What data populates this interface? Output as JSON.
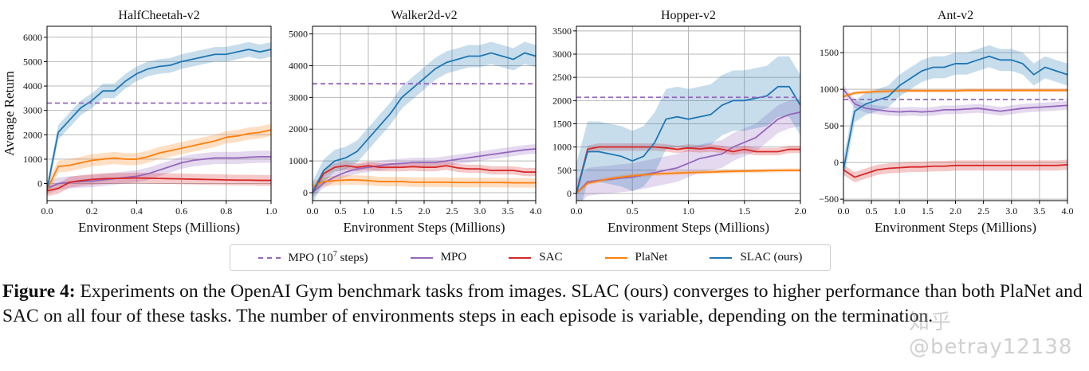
{
  "legend": [
    {
      "label": "MPO (10",
      "sup": "7",
      "suffix": " steps)",
      "color": "#9467bd",
      "dashed": true
    },
    {
      "label": "MPO",
      "color": "#9467bd"
    },
    {
      "label": "SAC",
      "color": "#d62728"
    },
    {
      "label": "PlaNet",
      "color": "#ff7f0e"
    },
    {
      "label": "SLAC (ours)",
      "color": "#1f77b4"
    }
  ],
  "caption": {
    "label": "Figure 4:",
    "text": " Experiments on the OpenAI Gym benchmark tasks from images. SLAC (ours) converges to higher performance than both PlaNet and SAC on all four of these tasks. The number of environments steps in each episode is variable, depending on the termination."
  },
  "watermark": "知乎 @betray12138",
  "chart_data": [
    {
      "type": "line",
      "title": "HalfCheetah-v2",
      "xlabel": "Environment Steps (Millions)",
      "ylabel": "Average Return",
      "xlim": [
        0,
        1.0
      ],
      "ylim": [
        -700,
        6450
      ],
      "xticks": [
        0,
        0.2,
        0.4,
        0.6,
        0.8,
        1.0
      ],
      "xtick_labels": [
        "0.0",
        "0.2",
        "0.4",
        "0.6",
        "0.8",
        "1.0"
      ],
      "yticks": [
        0,
        1000,
        2000,
        3000,
        4000,
        5000,
        6000
      ],
      "ytick_labels": [
        "0",
        "1000",
        "2000",
        "3000",
        "4000",
        "5000",
        "6000"
      ],
      "grid": true,
      "mpo_1e7": 3300,
      "x": [
        0,
        0.05,
        0.1,
        0.15,
        0.2,
        0.25,
        0.3,
        0.35,
        0.4,
        0.45,
        0.5,
        0.55,
        0.6,
        0.65,
        0.7,
        0.75,
        0.8,
        0.85,
        0.9,
        0.95,
        1.0
      ],
      "series": [
        {
          "name": "MPO",
          "band": 250,
          "values": [
            -200,
            0,
            50,
            80,
            100,
            150,
            200,
            250,
            300,
            400,
            550,
            700,
            850,
            950,
            1000,
            1050,
            1050,
            1050,
            1080,
            1100,
            1100
          ]
        },
        {
          "name": "SAC",
          "band": 220,
          "values": [
            -300,
            -200,
            50,
            120,
            170,
            200,
            210,
            220,
            230,
            220,
            210,
            200,
            190,
            180,
            170,
            160,
            150,
            140,
            140,
            130,
            130
          ]
        },
        {
          "name": "PlaNet",
          "band": 250,
          "values": [
            -250,
            700,
            750,
            850,
            950,
            1000,
            1050,
            1000,
            1000,
            1100,
            1250,
            1350,
            1450,
            1550,
            1650,
            1750,
            1900,
            1950,
            2050,
            2100,
            2200
          ]
        },
        {
          "name": "SLAC (ours)",
          "band": 300,
          "values": [
            -250,
            2100,
            2600,
            3100,
            3400,
            3800,
            3800,
            4200,
            4500,
            4700,
            4800,
            4850,
            5000,
            5100,
            5200,
            5300,
            5300,
            5400,
            5500,
            5400,
            5500
          ]
        }
      ]
    },
    {
      "type": "line",
      "title": "Walker2d-v2",
      "xlabel": "Environment Steps (Millions)",
      "xlim": [
        0,
        4.0
      ],
      "ylim": [
        -250,
        5240
      ],
      "xticks": [
        0,
        0.5,
        1,
        1.5,
        2,
        2.5,
        3,
        3.5,
        4
      ],
      "xtick_labels": [
        "0.0",
        "0.5",
        "1.0",
        "1.5",
        "2.0",
        "2.5",
        "3.0",
        "3.5",
        "4.0"
      ],
      "yticks": [
        0,
        1000,
        2000,
        3000,
        4000,
        5000
      ],
      "ytick_labels": [
        "0",
        "1000",
        "2000",
        "3000",
        "4000",
        "5000"
      ],
      "grid": true,
      "mpo_1e7": 3430,
      "x": [
        0,
        0.2,
        0.4,
        0.6,
        0.8,
        1.0,
        1.2,
        1.4,
        1.6,
        1.8,
        2.0,
        2.2,
        2.4,
        2.6,
        2.8,
        3.0,
        3.2,
        3.4,
        3.6,
        3.8,
        4.0
      ],
      "series": [
        {
          "name": "MPO",
          "band": 150,
          "values": [
            0,
            300,
            500,
            650,
            750,
            800,
            850,
            900,
            920,
            950,
            950,
            950,
            1000,
            1050,
            1100,
            1150,
            1200,
            1250,
            1300,
            1350,
            1380
          ]
        },
        {
          "name": "SAC",
          "band": 130,
          "values": [
            0,
            600,
            800,
            850,
            800,
            850,
            800,
            800,
            800,
            820,
            800,
            800,
            850,
            780,
            750,
            750,
            700,
            700,
            700,
            650,
            650
          ]
        },
        {
          "name": "PlaNet",
          "band": 150,
          "values": [
            200,
            350,
            380,
            400,
            400,
            380,
            350,
            350,
            350,
            330,
            330,
            330,
            330,
            320,
            320,
            320,
            320,
            320,
            310,
            310,
            310
          ]
        },
        {
          "name": "SLAC (ours)",
          "band": 350,
          "values": [
            0,
            700,
            1000,
            1100,
            1300,
            1700,
            2100,
            2500,
            3000,
            3300,
            3600,
            3900,
            4100,
            4200,
            4300,
            4300,
            4400,
            4300,
            4200,
            4400,
            4300
          ]
        }
      ]
    },
    {
      "type": "line",
      "title": "Hopper-v2",
      "xlabel": "Environment Steps (Millions)",
      "xlim": [
        0,
        2.0
      ],
      "ylim": [
        -155,
        3600
      ],
      "xticks": [
        0,
        0.5,
        1,
        1.5,
        2
      ],
      "xtick_labels": [
        "0.0",
        "0.5",
        "1.0",
        "1.5",
        "2.0"
      ],
      "yticks": [
        0,
        500,
        1000,
        1500,
        2000,
        2500,
        3000,
        3500
      ],
      "ytick_labels": [
        "0",
        "500",
        "1000",
        "1500",
        "2000",
        "2500",
        "3000",
        "3500"
      ],
      "grid": true,
      "mpo_1e7": 2070,
      "x": [
        0,
        0.1,
        0.2,
        0.3,
        0.4,
        0.5,
        0.6,
        0.7,
        0.8,
        0.9,
        1.0,
        1.1,
        1.2,
        1.3,
        1.4,
        1.5,
        1.6,
        1.7,
        1.8,
        1.9,
        2.0
      ],
      "series": [
        {
          "name": "MPO",
          "band": 300,
          "values": [
            0,
            250,
            280,
            300,
            330,
            350,
            400,
            450,
            500,
            550,
            650,
            750,
            800,
            850,
            1000,
            1100,
            1200,
            1400,
            1600,
            1700,
            1750
          ]
        },
        {
          "name": "SAC",
          "band": 80,
          "values": [
            0,
            950,
            1000,
            1000,
            1000,
            1000,
            1000,
            1000,
            980,
            950,
            980,
            960,
            980,
            950,
            900,
            950,
            900,
            900,
            900,
            950,
            950
          ]
        },
        {
          "name": "PlaNet",
          "band": 40,
          "values": [
            0,
            220,
            270,
            320,
            350,
            380,
            400,
            420,
            430,
            440,
            450,
            455,
            460,
            470,
            475,
            480,
            485,
            490,
            495,
            500,
            500
          ]
        },
        {
          "name": "SLAC (ours)",
          "band": 650,
          "values": [
            0,
            900,
            900,
            850,
            800,
            700,
            800,
            1100,
            1600,
            1650,
            1600,
            1650,
            1700,
            1900,
            2000,
            2000,
            2050,
            2100,
            2300,
            2300,
            1900
          ]
        }
      ]
    },
    {
      "type": "line",
      "title": "Ant-v2",
      "xlabel": "Environment Steps (Millions)",
      "xlim": [
        0,
        4.0
      ],
      "ylim": [
        -520,
        1860
      ],
      "xticks": [
        0,
        0.5,
        1,
        1.5,
        2,
        2.5,
        3,
        3.5,
        4
      ],
      "xtick_labels": [
        "0.0",
        "0.5",
        "1.0",
        "1.5",
        "2.0",
        "2.5",
        "3.0",
        "3.5",
        "4.0"
      ],
      "yticks": [
        -500,
        0,
        500,
        1000,
        1500
      ],
      "ytick_labels": [
        "−500",
        "0",
        "500",
        "1000",
        "1500"
      ],
      "grid": true,
      "mpo_1e7": 860,
      "x": [
        0,
        0.2,
        0.4,
        0.6,
        0.8,
        1.0,
        1.2,
        1.4,
        1.6,
        1.8,
        2.0,
        2.2,
        2.4,
        2.6,
        2.8,
        3.0,
        3.2,
        3.4,
        3.6,
        3.8,
        4.0
      ],
      "series": [
        {
          "name": "MPO",
          "band": 60,
          "values": [
            1000,
            800,
            740,
            720,
            700,
            690,
            700,
            690,
            700,
            720,
            720,
            730,
            740,
            720,
            700,
            720,
            740,
            750,
            760,
            770,
            780
          ]
        },
        {
          "name": "SAC",
          "band": 70,
          "values": [
            -100,
            -200,
            -150,
            -100,
            -80,
            -70,
            -60,
            -60,
            -50,
            -50,
            -40,
            -40,
            -40,
            -40,
            -40,
            -40,
            -40,
            -40,
            -40,
            -40,
            -30
          ]
        },
        {
          "name": "PlaNet",
          "band": 25,
          "values": [
            900,
            950,
            960,
            970,
            975,
            980,
            980,
            980,
            980,
            980,
            980,
            985,
            985,
            985,
            985,
            985,
            985,
            985,
            985,
            985,
            985
          ]
        },
        {
          "name": "SLAC (ours)",
          "band": 150,
          "values": [
            -100,
            700,
            800,
            850,
            900,
            1050,
            1150,
            1250,
            1300,
            1300,
            1350,
            1350,
            1400,
            1450,
            1400,
            1400,
            1350,
            1200,
            1300,
            1250,
            1200
          ]
        }
      ]
    }
  ]
}
